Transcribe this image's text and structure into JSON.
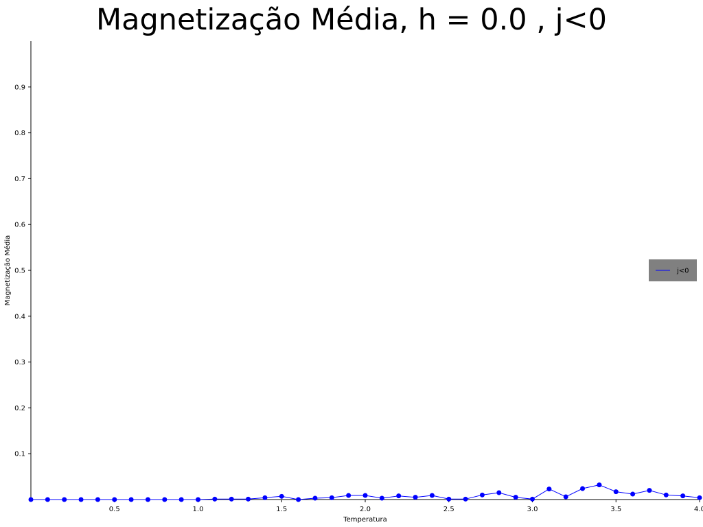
{
  "chart_data": {
    "type": "line",
    "title": "Magnetização Média, h = 0.0 , j<0",
    "xlabel": "Temperatura",
    "ylabel": "Magnetização Média",
    "xlim": [
      0.0,
      4.0
    ],
    "ylim": [
      0.0,
      1.0
    ],
    "xticks": [
      0.5,
      1.0,
      1.5,
      2.0,
      2.5,
      3.0,
      3.5,
      4.0
    ],
    "xtick_labels": [
      "0.5",
      "1.0",
      "1.5",
      "2.0",
      "2.5",
      "3.0",
      "3.5",
      "4.0"
    ],
    "yticks": [
      0.1,
      0.2,
      0.3,
      0.4,
      0.5,
      0.6,
      0.7,
      0.8,
      0.9
    ],
    "ytick_labels": [
      "0.1",
      "0.2",
      "0.3",
      "0.4",
      "0.5",
      "0.6",
      "0.7",
      "0.8",
      "0.9"
    ],
    "legend_position": "center-right",
    "grid": false,
    "series": [
      {
        "name": "j<0",
        "color": "#0000ff",
        "x": [
          0.0,
          0.1,
          0.2,
          0.3,
          0.4,
          0.5,
          0.6,
          0.7,
          0.8,
          0.9,
          1.0,
          1.1,
          1.2,
          1.3,
          1.4,
          1.5,
          1.6,
          1.7,
          1.8,
          1.9,
          2.0,
          2.1,
          2.2,
          2.3,
          2.4,
          2.5,
          2.6,
          2.7,
          2.8,
          2.9,
          3.0,
          3.1,
          3.2,
          3.3,
          3.4,
          3.5,
          3.6,
          3.7,
          3.8,
          3.9,
          4.0
        ],
        "y": [
          0.0,
          0.0,
          0.0,
          0.0,
          0.0,
          0.0,
          0.0,
          0.0,
          0.0,
          0.0,
          0.0,
          0.001,
          0.001,
          0.001,
          0.004,
          0.007,
          0.0,
          0.003,
          0.004,
          0.009,
          0.009,
          0.003,
          0.008,
          0.005,
          0.009,
          0.001,
          0.001,
          0.01,
          0.015,
          0.005,
          0.001,
          0.023,
          0.006,
          0.024,
          0.032,
          0.017,
          0.012,
          0.02,
          0.01,
          0.008,
          0.004
        ]
      }
    ]
  }
}
